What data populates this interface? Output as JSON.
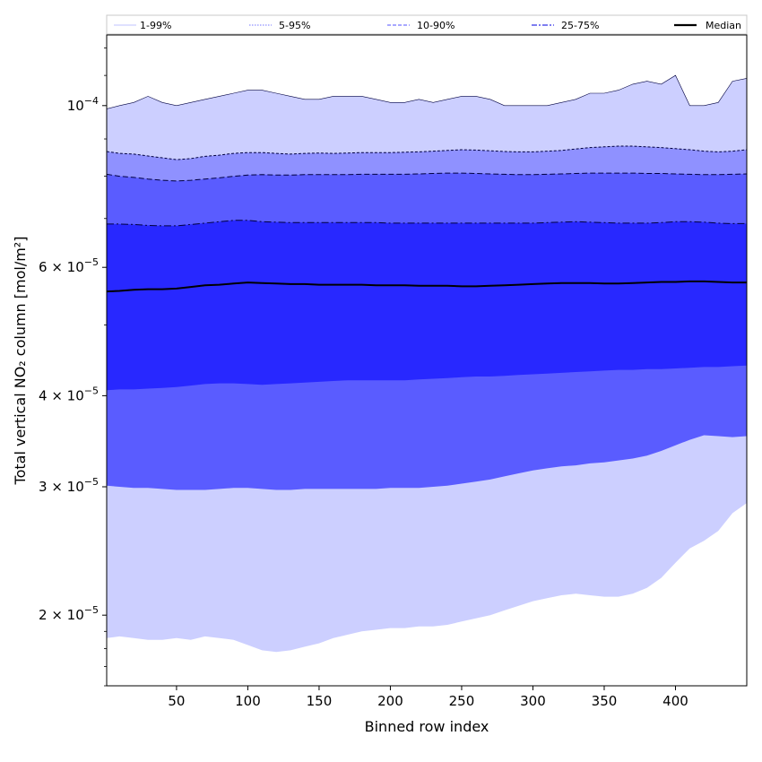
{
  "chart_data": {
    "type": "area",
    "title": "",
    "xlabel": "Binned row index",
    "ylabel": "Total vertical NO₂ column [mol/m²]",
    "yscale": "log",
    "xlim": [
      1,
      450
    ],
    "ylim": [
      1.6e-05,
      0.000125
    ],
    "x_ticks": [
      50,
      100,
      150,
      200,
      250,
      300,
      350,
      400
    ],
    "x_tick_labels": [
      "50",
      "100",
      "150",
      "200",
      "250",
      "300",
      "350",
      "400"
    ],
    "y_ticks": [
      {
        "value": 2e-05,
        "base": "2",
        "sep": " × ",
        "exp_base": "10",
        "exp": "−5"
      },
      {
        "value": 3e-05,
        "base": "3",
        "sep": " × ",
        "exp_base": "10",
        "exp": "−5"
      },
      {
        "value": 4e-05,
        "base": "4",
        "sep": " × ",
        "exp_base": "10",
        "exp": "−5"
      },
      {
        "value": 6e-05,
        "base": "6",
        "sep": " × ",
        "exp_base": "10",
        "exp": "−5"
      },
      {
        "value": 0.0001,
        "base": "",
        "sep": "",
        "exp_base": "10",
        "exp": "−4"
      }
    ],
    "x": [
      1,
      10,
      20,
      30,
      40,
      50,
      60,
      70,
      80,
      90,
      100,
      110,
      120,
      130,
      140,
      150,
      160,
      170,
      180,
      190,
      200,
      210,
      220,
      230,
      240,
      250,
      260,
      270,
      280,
      290,
      300,
      310,
      320,
      330,
      340,
      350,
      360,
      370,
      380,
      390,
      400,
      410,
      420,
      430,
      440,
      450
    ],
    "legend": {
      "position": "top",
      "entries": [
        {
          "label": "1-99%",
          "color": "#cccfff",
          "style": "solid"
        },
        {
          "label": "5-95%",
          "color": "#8f91ff",
          "style": "dotted"
        },
        {
          "label": "10-90%",
          "color": "#7575ff",
          "style": "dashed"
        },
        {
          "label": "25-75%",
          "color": "#3030e6",
          "style": "dashdot"
        },
        {
          "label": "Median",
          "color": "#000000",
          "style": "solid"
        }
      ]
    },
    "bands": [
      {
        "name": "1-99%",
        "color": "#cccfff",
        "upper": [
          9.9e-05,
          0.0001,
          0.000101,
          0.000103,
          0.000101,
          0.0001,
          0.000101,
          0.000102,
          0.000103,
          0.000104,
          0.000105,
          0.000105,
          0.000104,
          0.000103,
          0.000102,
          0.000102,
          0.000103,
          0.000103,
          0.000103,
          0.000102,
          0.000101,
          0.000101,
          0.000102,
          0.000101,
          0.000102,
          0.000103,
          0.000103,
          0.000102,
          0.0001,
          0.0001,
          0.0001,
          0.0001,
          0.000101,
          0.000102,
          0.000104,
          0.000104,
          0.000105,
          0.000107,
          0.000108,
          0.000107,
          0.00011,
          0.0001,
          0.0001,
          0.000101,
          0.000108,
          0.000109
        ],
        "lower": [
          1.86e-05,
          1.87e-05,
          1.86e-05,
          1.85e-05,
          1.85e-05,
          1.86e-05,
          1.85e-05,
          1.87e-05,
          1.86e-05,
          1.85e-05,
          1.82e-05,
          1.79e-05,
          1.78e-05,
          1.79e-05,
          1.81e-05,
          1.83e-05,
          1.86e-05,
          1.88e-05,
          1.9e-05,
          1.91e-05,
          1.92e-05,
          1.92e-05,
          1.93e-05,
          1.93e-05,
          1.94e-05,
          1.96e-05,
          1.98e-05,
          2e-05,
          2.03e-05,
          2.06e-05,
          2.09e-05,
          2.11e-05,
          2.13e-05,
          2.14e-05,
          2.13e-05,
          2.12e-05,
          2.12e-05,
          2.14e-05,
          2.18e-05,
          2.25e-05,
          2.36e-05,
          2.47e-05,
          2.53e-05,
          2.61e-05,
          2.76e-05,
          2.85e-05
        ]
      },
      {
        "name": "5-95%",
        "color": "#8f91ff",
        "upper": [
          8.65e-05,
          8.6e-05,
          8.58e-05,
          8.53e-05,
          8.48e-05,
          8.43e-05,
          8.46e-05,
          8.52e-05,
          8.55e-05,
          8.6e-05,
          8.62e-05,
          8.62e-05,
          8.6e-05,
          8.58e-05,
          8.6e-05,
          8.61e-05,
          8.6e-05,
          8.61e-05,
          8.62e-05,
          8.62e-05,
          8.62e-05,
          8.63e-05,
          8.64e-05,
          8.66e-05,
          8.68e-05,
          8.7e-05,
          8.69e-05,
          8.67e-05,
          8.65e-05,
          8.64e-05,
          8.64e-05,
          8.66e-05,
          8.68e-05,
          8.72e-05,
          8.76e-05,
          8.78e-05,
          8.8e-05,
          8.8e-05,
          8.78e-05,
          8.76e-05,
          8.73e-05,
          8.7e-05,
          8.66e-05,
          8.64e-05,
          8.66e-05,
          8.7e-05
        ],
        "lower": [
          3.46e-05,
          3.48e-05,
          3.47e-05,
          3.47e-05,
          3.48e-05,
          3.5e-05,
          3.52e-05,
          3.54e-05,
          3.56e-05,
          3.58e-05,
          3.59e-05,
          3.57e-05,
          3.57e-05,
          3.58e-05,
          3.59e-05,
          3.59e-05,
          3.6e-05,
          3.6e-05,
          3.61e-05,
          3.62e-05,
          3.63e-05,
          3.63e-05,
          3.64e-05,
          3.65e-05,
          3.66e-05,
          3.68e-05,
          3.7e-05,
          3.71e-05,
          3.72e-05,
          3.74e-05,
          3.75e-05,
          3.76e-05,
          3.77e-05,
          3.78e-05,
          3.79e-05,
          3.8e-05,
          3.82e-05,
          3.83e-05,
          3.85e-05,
          3.87e-05,
          3.89e-05,
          3.9e-05,
          3.91e-05,
          3.9e-05,
          3.91e-05,
          3.93e-05
        ]
      },
      {
        "name": "10-90%",
        "color": "#5a5cff",
        "upper": [
          8.05e-05,
          8e-05,
          7.97e-05,
          7.93e-05,
          7.9e-05,
          7.88e-05,
          7.9e-05,
          7.93e-05,
          7.96e-05,
          8e-05,
          8.03e-05,
          8.04e-05,
          8.03e-05,
          8.03e-05,
          8.04e-05,
          8.04e-05,
          8.04e-05,
          8.04e-05,
          8.05e-05,
          8.05e-05,
          8.05e-05,
          8.05e-05,
          8.06e-05,
          8.07e-05,
          8.08e-05,
          8.08e-05,
          8.07e-05,
          8.06e-05,
          8.05e-05,
          8.04e-05,
          8.04e-05,
          8.05e-05,
          8.06e-05,
          8.07e-05,
          8.08e-05,
          8.08e-05,
          8.08e-05,
          8.08e-05,
          8.07e-05,
          8.07e-05,
          8.06e-05,
          8.05e-05,
          8.04e-05,
          8.04e-05,
          8.05e-05,
          8.06e-05
        ],
        "lower": [
          3.01e-05,
          3e-05,
          2.99e-05,
          2.99e-05,
          2.98e-05,
          2.97e-05,
          2.97e-05,
          2.97e-05,
          2.98e-05,
          2.99e-05,
          2.99e-05,
          2.98e-05,
          2.97e-05,
          2.97e-05,
          2.98e-05,
          2.98e-05,
          2.98e-05,
          2.98e-05,
          2.98e-05,
          2.98e-05,
          2.99e-05,
          2.99e-05,
          2.99e-05,
          3e-05,
          3.01e-05,
          3.03e-05,
          3.05e-05,
          3.07e-05,
          3.1e-05,
          3.13e-05,
          3.16e-05,
          3.18e-05,
          3.2e-05,
          3.21e-05,
          3.23e-05,
          3.24e-05,
          3.26e-05,
          3.28e-05,
          3.31e-05,
          3.36e-05,
          3.42e-05,
          3.48e-05,
          3.53e-05,
          3.52e-05,
          3.51e-05,
          3.52e-05
        ]
      },
      {
        "name": "25-75%",
        "color": "#2828ff",
        "upper": [
          6.88e-05,
          6.88e-05,
          6.87e-05,
          6.85e-05,
          6.84e-05,
          6.84e-05,
          6.87e-05,
          6.9e-05,
          6.93e-05,
          6.96e-05,
          6.96e-05,
          6.93e-05,
          6.92e-05,
          6.91e-05,
          6.91e-05,
          6.91e-05,
          6.91e-05,
          6.91e-05,
          6.91e-05,
          6.91e-05,
          6.9e-05,
          6.9e-05,
          6.9e-05,
          6.9e-05,
          6.9e-05,
          6.9e-05,
          6.9e-05,
          6.9e-05,
          6.9e-05,
          6.9e-05,
          6.9e-05,
          6.91e-05,
          6.92e-05,
          6.93e-05,
          6.92e-05,
          6.91e-05,
          6.9e-05,
          6.9e-05,
          6.9e-05,
          6.91e-05,
          6.93e-05,
          6.93e-05,
          6.92e-05,
          6.9e-05,
          6.89e-05,
          6.89e-05
        ],
        "lower": [
          4.07e-05,
          4.08e-05,
          4.08e-05,
          4.09e-05,
          4.1e-05,
          4.11e-05,
          4.13e-05,
          4.15e-05,
          4.16e-05,
          4.16e-05,
          4.15e-05,
          4.14e-05,
          4.15e-05,
          4.16e-05,
          4.17e-05,
          4.18e-05,
          4.19e-05,
          4.2e-05,
          4.2e-05,
          4.2e-05,
          4.2e-05,
          4.2e-05,
          4.21e-05,
          4.22e-05,
          4.23e-05,
          4.24e-05,
          4.25e-05,
          4.25e-05,
          4.26e-05,
          4.27e-05,
          4.28e-05,
          4.29e-05,
          4.3e-05,
          4.31e-05,
          4.32e-05,
          4.33e-05,
          4.34e-05,
          4.34e-05,
          4.35e-05,
          4.35e-05,
          4.36e-05,
          4.37e-05,
          4.38e-05,
          4.38e-05,
          4.39e-05,
          4.4e-05
        ]
      }
    ],
    "median": [
      5.56e-05,
      5.57e-05,
      5.59e-05,
      5.6e-05,
      5.6e-05,
      5.61e-05,
      5.64e-05,
      5.67e-05,
      5.68e-05,
      5.7e-05,
      5.72e-05,
      5.71e-05,
      5.7e-05,
      5.69e-05,
      5.69e-05,
      5.68e-05,
      5.68e-05,
      5.68e-05,
      5.68e-05,
      5.67e-05,
      5.67e-05,
      5.67e-05,
      5.66e-05,
      5.66e-05,
      5.66e-05,
      5.65e-05,
      5.65e-05,
      5.66e-05,
      5.67e-05,
      5.68e-05,
      5.69e-05,
      5.7e-05,
      5.71e-05,
      5.71e-05,
      5.71e-05,
      5.7e-05,
      5.7e-05,
      5.71e-05,
      5.72e-05,
      5.73e-05,
      5.73e-05,
      5.74e-05,
      5.74e-05,
      5.73e-05,
      5.72e-05,
      5.72e-05
    ]
  }
}
